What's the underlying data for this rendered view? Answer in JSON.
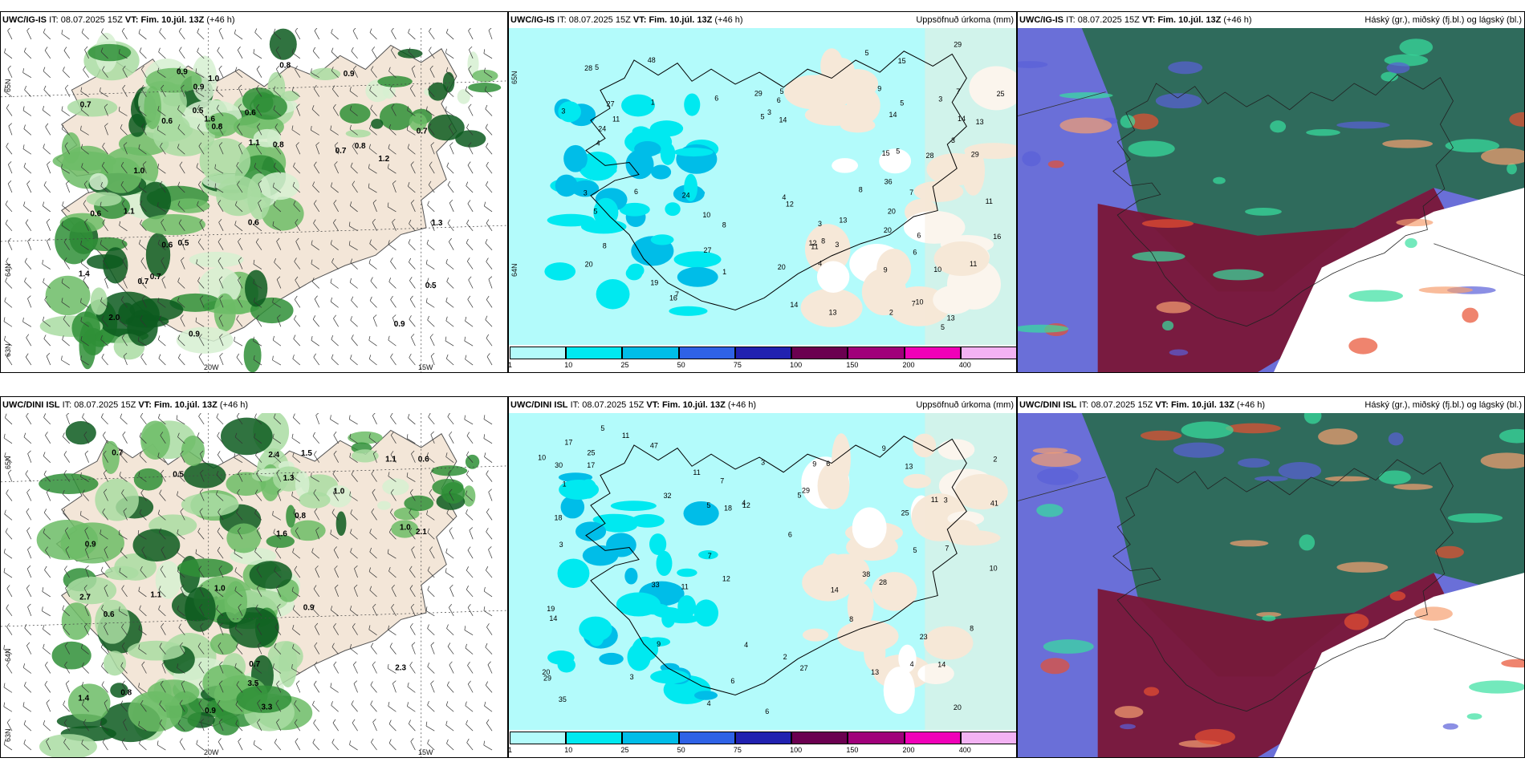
{
  "panels": [
    {
      "model": "UWC/IG-IS",
      "it_label": "IT:",
      "it_value": "08.07.2025 15Z",
      "vt_label": "VT:",
      "vt_value": "Fim. 10.júl. 13Z",
      "lead": "(+46 h)",
      "right_title": "",
      "lat_labels": [
        "65N",
        "64N",
        "63N"
      ],
      "lon_labels": [
        "20W",
        "15W"
      ]
    },
    {
      "model": "UWC/IG-IS",
      "it_label": "IT:",
      "it_value": "08.07.2025 15Z",
      "vt_label": "VT:",
      "vt_value": "Fim. 10.júl. 13Z",
      "lead": "(+46 h)",
      "right_title": "Uppsöfnuð úrkoma (mm)",
      "lat_labels": [
        "65N",
        "64N"
      ],
      "lon_labels": []
    },
    {
      "model": "UWC/IG-IS",
      "it_label": "IT:",
      "it_value": "08.07.2025 15Z",
      "vt_label": "VT:",
      "vt_value": "Fim. 10.júl. 13Z",
      "lead": "(+46 h)",
      "right_title": "Háský (gr.), miðský (fj.bl.) og lágský (bl.)",
      "lat_labels": [],
      "lon_labels": []
    },
    {
      "model": "UWC/DINI ISL",
      "it_label": "IT:",
      "it_value": "08.07.2025 15Z",
      "vt_label": "VT:",
      "vt_value": "Fim. 10.júl. 13Z",
      "lead": "(+46 h)",
      "right_title": "",
      "lat_labels": [
        "65N",
        "64N",
        "63N"
      ],
      "lon_labels": [
        "20W",
        "15W"
      ]
    },
    {
      "model": "UWC/DINI ISL",
      "it_label": "IT:",
      "it_value": "08.07.2025 15Z",
      "vt_label": "VT:",
      "vt_value": "Fim. 10.júl. 13Z",
      "lead": "(+46 h)",
      "right_title": "Uppsöfnuð úrkoma (mm)",
      "lat_labels": [],
      "lon_labels": []
    },
    {
      "model": "UWC/DINI ISL",
      "it_label": "IT:",
      "it_value": "08.07.2025 15Z",
      "vt_label": "VT:",
      "vt_value": "Fim. 10.júl. 13Z",
      "lead": "(+46 h)",
      "right_title": "Háský (gr.), miðský (fj.bl.) og lágský (bl.)",
      "lat_labels": [],
      "lon_labels": []
    }
  ],
  "colorbar": {
    "labels": [
      "1",
      "10",
      "25",
      "50",
      "75",
      "100",
      "150",
      "200",
      "400"
    ],
    "colors": [
      "#b3fbfb",
      "#00e9f0",
      "#00bde8",
      "#2f62e6",
      "#2121b0",
      "#6b0050",
      "#a0007a",
      "#f000b8",
      "#f3b2f3"
    ]
  },
  "precip_values_top": [
    "3",
    "6",
    "4",
    "7",
    "5",
    "5",
    "10",
    "11",
    "5",
    "5",
    "4",
    "3",
    "6",
    "6",
    "15",
    "27",
    "20",
    "25",
    "36",
    "48",
    "24",
    "16",
    "16",
    "13",
    "29",
    "28",
    "24",
    "29",
    "12",
    "13",
    "20",
    "14",
    "14",
    "13",
    "15",
    "29",
    "20",
    "28",
    "14",
    "11",
    "3",
    "3",
    "5",
    "6",
    "8",
    "11",
    "13",
    "10",
    "8",
    "14",
    "20",
    "27",
    "19",
    "6",
    "9",
    "7",
    "7",
    "3",
    "2",
    "9",
    "8",
    "1",
    "1",
    "3",
    "5",
    "4",
    "3",
    "12",
    "7",
    "5",
    "10",
    "11",
    "5",
    "8"
  ],
  "precip_values_bottom": [
    "3",
    "6",
    "4",
    "7",
    "9",
    "4",
    "25",
    "11",
    "17",
    "18",
    "19",
    "35",
    "32",
    "33",
    "20",
    "14",
    "47",
    "41",
    "38",
    "29",
    "30",
    "29",
    "27",
    "25",
    "12",
    "13",
    "14",
    "8",
    "6",
    "12",
    "11",
    "11",
    "20",
    "14",
    "18",
    "28",
    "23",
    "17",
    "10",
    "13",
    "11",
    "9",
    "6",
    "5",
    "8",
    "4",
    "5",
    "6",
    "10",
    "5",
    "9",
    "3",
    "2",
    "7",
    "3",
    "2",
    "1",
    "5",
    "7",
    "4",
    "3"
  ],
  "cloud_values_top": [
    "0.7",
    "0.6",
    "0.7",
    "0.9",
    "1.0",
    "1.1",
    "1.2",
    "0.5",
    "0.7",
    "1.3",
    "0.8",
    "0.9",
    "0.5",
    "0.8",
    "0.9",
    "0.6",
    "0.7",
    "0.6",
    "0.8",
    "0.5",
    "0.9",
    "2.0",
    "1.6",
    "0.6",
    "1.4",
    "1.1",
    "0.6",
    "0.8",
    "1.0",
    "0.7",
    "0.9"
  ],
  "cloud_values_bottom": [
    "0.6",
    "1.0",
    "2.1",
    "1.4",
    "1.6",
    "0.9",
    "3.5",
    "2.7",
    "3.3",
    "2.4",
    "1.1",
    "2.3",
    "0.5",
    "0.9",
    "0.7",
    "0.8",
    "1.0",
    "0.6",
    "1.3",
    "0.9",
    "1.0",
    "0.8",
    "1.5",
    "1.1",
    "0.7"
  ]
}
